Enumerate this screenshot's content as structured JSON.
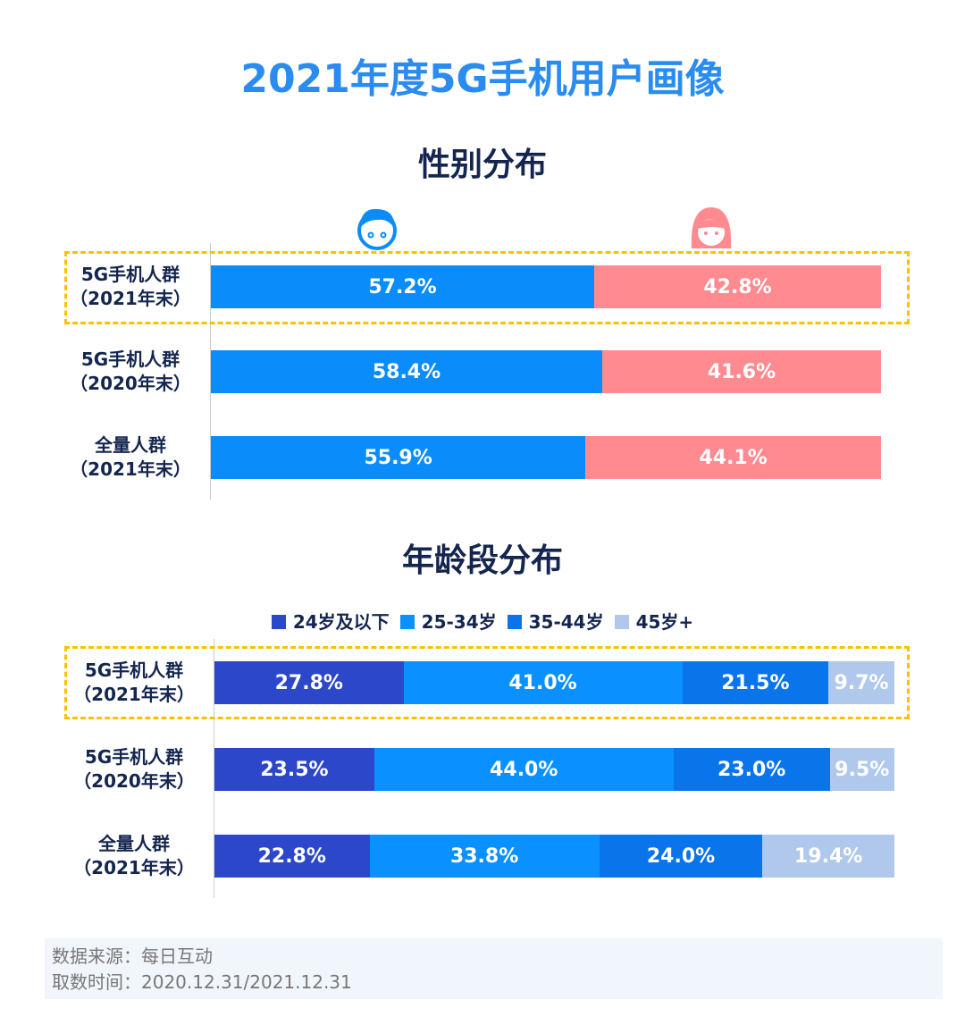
{
  "title": "2021年度5G手机用户画像",
  "chart_data": [
    {
      "type": "bar",
      "orientation": "horizontal",
      "stacked": true,
      "title": "性别分布",
      "categories": [
        "5G手机人群\n（2021年末）",
        "5G手机人群\n（2020年末）",
        "全量人群\n（2021年末）"
      ],
      "series": [
        {
          "name": "male",
          "values": [
            57.2,
            58.4,
            55.9
          ],
          "color": "#0a8cfa"
        },
        {
          "name": "female",
          "values": [
            42.8,
            41.6,
            44.1
          ],
          "color": "#ff8a8f"
        }
      ],
      "labels": [
        [
          "57.2%",
          "42.8%"
        ],
        [
          "58.4%",
          "41.6%"
        ],
        [
          "55.9%",
          "44.1%"
        ]
      ],
      "highlighted_category": 0
    },
    {
      "type": "bar",
      "orientation": "horizontal",
      "stacked": true,
      "title": "年龄段分布",
      "legend": "top",
      "categories": [
        "5G手机人群\n（2021年末）",
        "5G手机人群\n（2020年末）",
        "全量人群\n（2021年末）"
      ],
      "series": [
        {
          "name": "24岁及以下",
          "values": [
            27.8,
            23.5,
            22.8
          ],
          "color": "#2c47c9"
        },
        {
          "name": "25-34岁",
          "values": [
            41.0,
            44.0,
            33.8
          ],
          "color": "#0a90ff"
        },
        {
          "name": "35-44岁",
          "values": [
            21.5,
            23.0,
            24.0
          ],
          "color": "#0a74ea"
        },
        {
          "name": "45岁+",
          "values": [
            9.7,
            9.5,
            19.4
          ],
          "color": "#afc8ec"
        }
      ],
      "labels": [
        [
          "27.8%",
          "41.0%",
          "21.5%",
          "9.7%"
        ],
        [
          "23.5%",
          "44.0%",
          "23.0%",
          "9.5%"
        ],
        [
          "22.8%",
          "33.8%",
          "24.0%",
          "19.4%"
        ]
      ],
      "highlighted_category": 0
    }
  ],
  "footer": {
    "source": "数据来源：每日互动",
    "time": "取数时间：2020.12.31/2021.12.31"
  }
}
